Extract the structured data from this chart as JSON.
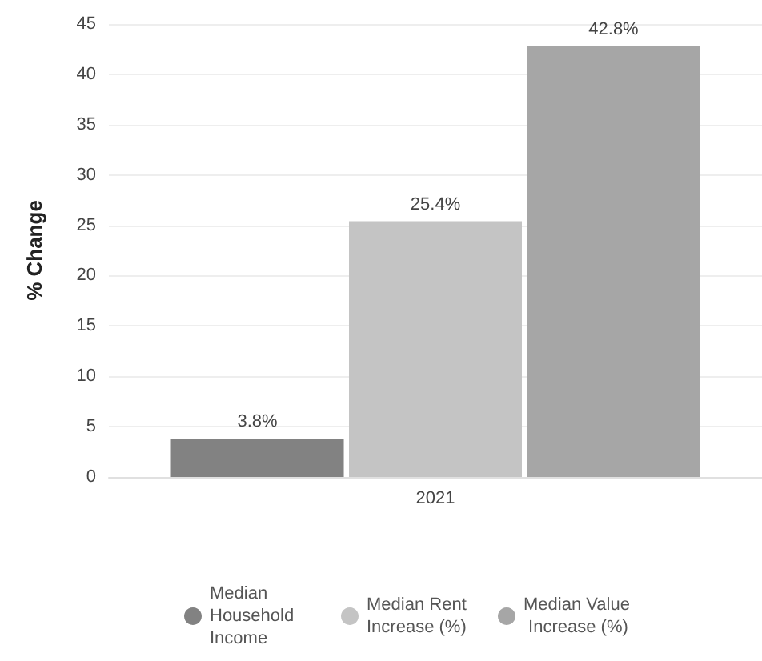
{
  "chart_data": {
    "type": "bar",
    "ylabel": "% Change",
    "categories": [
      "2021"
    ],
    "series": [
      {
        "name": "Median Household Income",
        "color": "#828282",
        "values": [
          3.8
        ],
        "value_labels": [
          "3.8%"
        ]
      },
      {
        "name": "Median Rent Increase (%)",
        "color": "#c4c4c4",
        "values": [
          25.4
        ],
        "value_labels": [
          "25.4%"
        ]
      },
      {
        "name": "Median Value Increase (%)",
        "color": "#a6a6a6",
        "values": [
          42.8
        ],
        "value_labels": [
          "42.8%"
        ]
      }
    ],
    "ylim": [
      0,
      45
    ],
    "yticks": [
      0,
      5,
      10,
      15,
      20,
      25,
      30,
      35,
      40,
      45
    ],
    "grid": "y",
    "legend": "bottom"
  }
}
